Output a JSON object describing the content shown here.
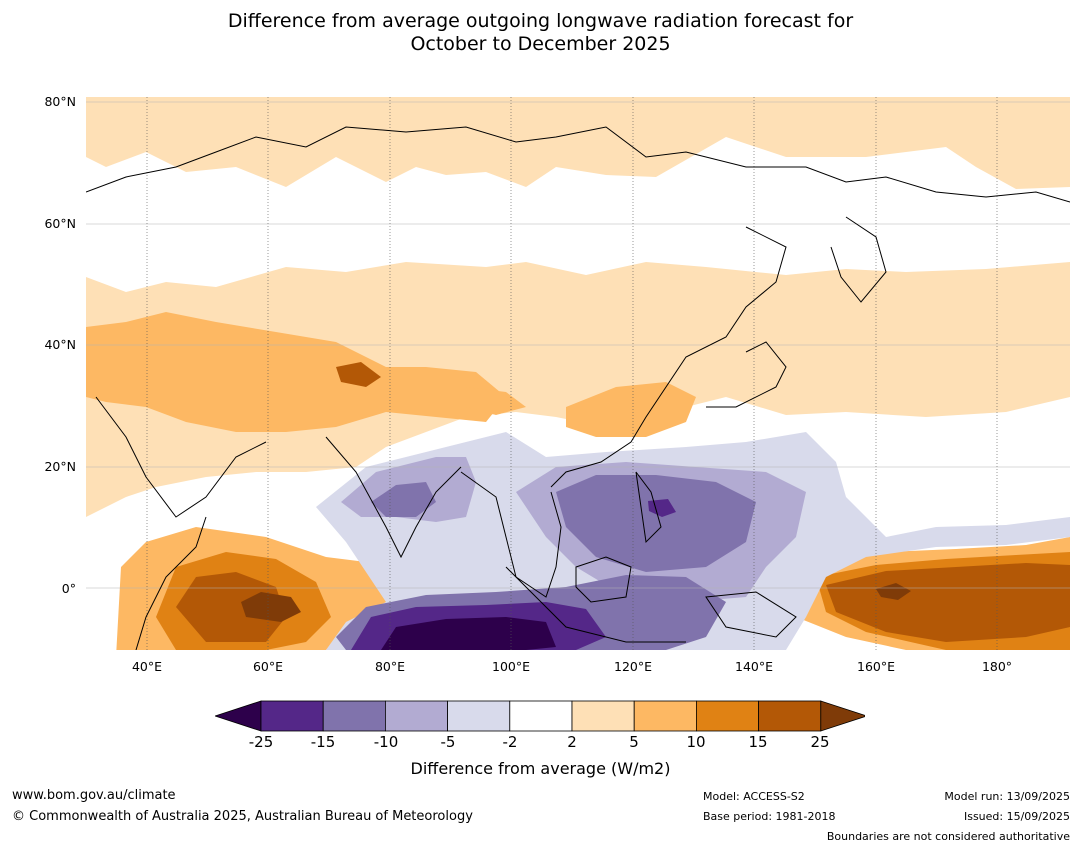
{
  "title": {
    "line1": "Difference from average outgoing longwave radiation forecast for",
    "line2": "October to December 2025"
  },
  "map": {
    "projection": "equirectangular",
    "lon_range": [
      30,
      192
    ],
    "lat_range": [
      -10,
      81
    ],
    "lat_ticks": [
      {
        "value": 80,
        "label": "80°N"
      },
      {
        "value": 60,
        "label": "60°N"
      },
      {
        "value": 40,
        "label": "40°N"
      },
      {
        "value": 20,
        "label": "20°N"
      },
      {
        "value": 0,
        "label": "0°"
      }
    ],
    "lon_ticks": [
      {
        "value": 40,
        "label": "40°E"
      },
      {
        "value": 60,
        "label": "60°E"
      },
      {
        "value": 80,
        "label": "80°E"
      },
      {
        "value": 100,
        "label": "100°E"
      },
      {
        "value": 120,
        "label": "120°E"
      },
      {
        "value": 140,
        "label": "140°E"
      },
      {
        "value": 160,
        "label": "160°E"
      },
      {
        "value": 180,
        "label": "180°"
      }
    ],
    "grid": true
  },
  "legend": {
    "ticks": [
      "-25",
      "-15",
      "-10",
      "-5",
      "-2",
      "2",
      "5",
      "10",
      "15",
      "25"
    ],
    "colors": [
      "#2d004b",
      "#542788",
      "#8073ac",
      "#b2abd2",
      "#d8daeb",
      "#ffffff",
      "#fee0b6",
      "#fdb863",
      "#e08214",
      "#b35806",
      "#7f3b08"
    ],
    "label": "Difference from average (W/m2)"
  },
  "footer": {
    "website": "www.bom.gov.au/climate",
    "copyright": "© Commonwealth of Australia 2025, Australian Bureau of Meteorology",
    "model": "Model: ACCESS-S2",
    "base_period": "Base period: 1981-2018",
    "model_run": "Model run: 13/09/2025",
    "issued": "Issued: 15/09/2025",
    "disclaimer": "Boundaries are not considered authoritative"
  }
}
